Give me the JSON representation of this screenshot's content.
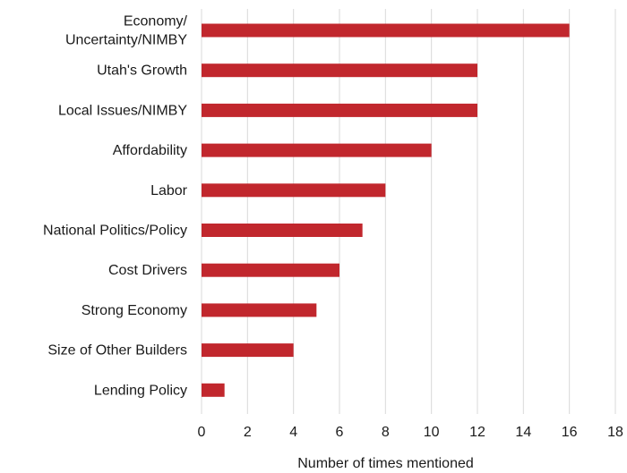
{
  "chart_data": {
    "type": "bar",
    "orientation": "horizontal",
    "categories": [
      [
        "Economy/",
        "Uncertainty/NIMBY"
      ],
      [
        "Utah's Growth"
      ],
      [
        "Local Issues/NIMBY"
      ],
      [
        "Affordability"
      ],
      [
        "Labor"
      ],
      [
        "National Politics/Policy"
      ],
      [
        "Cost Drivers"
      ],
      [
        "Strong Economy"
      ],
      [
        "Size of Other Builders"
      ],
      [
        "Lending Policy"
      ]
    ],
    "values": [
      16,
      12,
      12,
      10,
      8,
      7,
      6,
      5,
      4,
      1
    ],
    "xlabel": "Number of times mentioned",
    "ylabel": "",
    "xlim": [
      0,
      18
    ],
    "xticks": [
      "0",
      "2",
      "4",
      "6",
      "8",
      "10",
      "12",
      "14",
      "16",
      "18"
    ],
    "grid": "vertical",
    "legend": "none",
    "bar_color": "#c1272d"
  }
}
